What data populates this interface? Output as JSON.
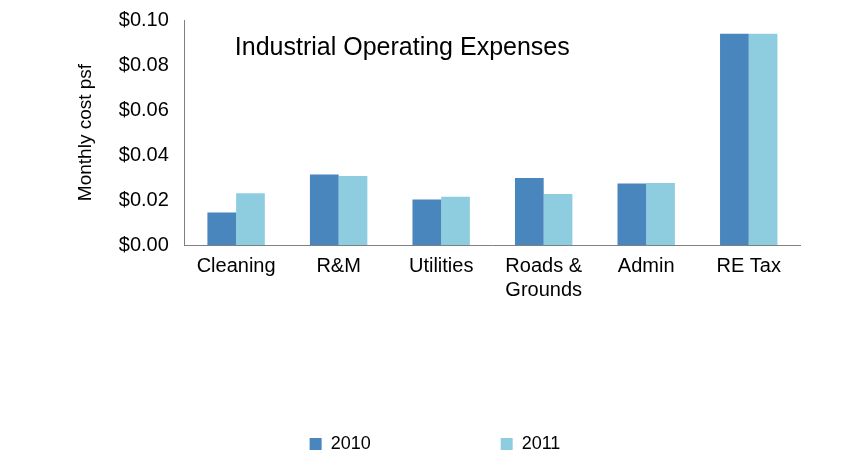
{
  "chart_data": {
    "type": "bar",
    "title": "Industrial Operating Expenses",
    "y_label": "Monthly cost psf",
    "categories": [
      "Cleaning",
      "R&M",
      "Utilities",
      "Roads & Grounds",
      "Admin",
      "RE Tax"
    ],
    "series": [
      {
        "name": "2010",
        "color": "#4a86be",
        "values": [
          0.0144,
          0.0313,
          0.0202,
          0.0298,
          0.0273,
          0.0939
        ]
      },
      {
        "name": "2011",
        "color": "#8ecde0",
        "values": [
          0.023,
          0.0307,
          0.0215,
          0.0227,
          0.0276,
          0.0939
        ]
      }
    ],
    "ylim": [
      0,
      0.1
    ],
    "yticks": [
      {
        "value": 0,
        "label": "$0.00"
      },
      {
        "value": 0.02,
        "label": "$0.02"
      },
      {
        "value": 0.04,
        "label": "$0.04"
      },
      {
        "value": 0.06,
        "label": "$0.06"
      },
      {
        "value": 0.08,
        "label": "$0.08"
      },
      {
        "value": 0.1,
        "label": "$0.10"
      }
    ],
    "grid": false,
    "legend": "bottom"
  }
}
